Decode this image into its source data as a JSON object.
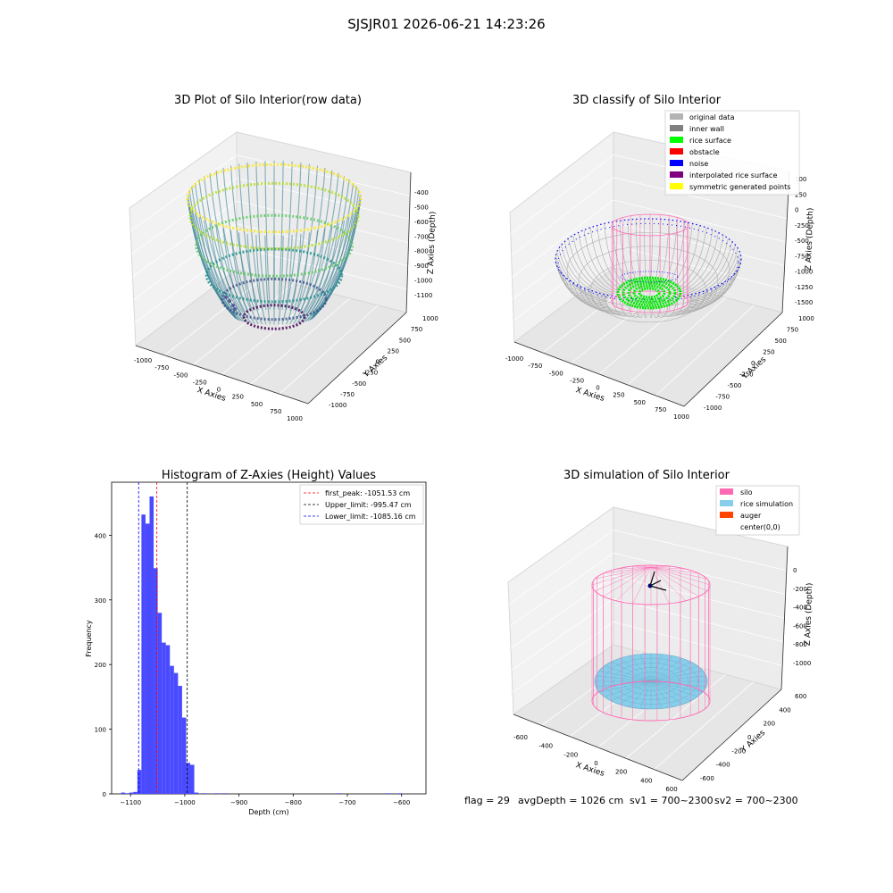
{
  "figure": {
    "suptitle": "SJSJR01 2026-06-21 14:23:26",
    "footer": {
      "flag": "flag = 29",
      "avg_depth": "avgDepth = 1026 cm",
      "sv1": "sv1 = 700~2300",
      "sv2": "sv2 = 700~2300"
    }
  },
  "chart_data": [
    {
      "type": "scatter3d",
      "title": "3D Plot of Silo Interior(row data)",
      "xlabel": "X Axies",
      "ylabel": "Y Axies",
      "zlabel": "Z Axies (Depth)",
      "x_ticks": [
        "-1000",
        "-750",
        "-500",
        "-250",
        "0",
        "250",
        "500",
        "750",
        "1000"
      ],
      "y_ticks": [
        "-1000",
        "-750",
        "-500",
        "-250",
        "0",
        "250",
        "500",
        "750",
        "1000"
      ],
      "z_ticks": [
        "-400",
        "-500",
        "-600",
        "-700",
        "-800",
        "-900",
        "-1000",
        "-1100"
      ],
      "xlim": [
        -1000,
        1000
      ],
      "ylim": [
        -1000,
        1000
      ],
      "zlim": [
        -1150,
        -350
      ],
      "colormap": "viridis"
    },
    {
      "type": "scatter3d",
      "title": "3D classify of Silo Interior",
      "xlabel": "X Axies",
      "ylabel": "Y Axies",
      "zlabel": "Z Axies (Depth)",
      "x_ticks": [
        "-1000",
        "-750",
        "-500",
        "-250",
        "0",
        "250",
        "500",
        "750",
        "1000"
      ],
      "y_ticks": [
        "-1000",
        "-750",
        "-500",
        "-250",
        "0",
        "250",
        "500",
        "750",
        "1000"
      ],
      "z_ticks": [
        "500",
        "250",
        "0",
        "-250",
        "-500",
        "-750",
        "-1000",
        "-1250",
        "-1500"
      ],
      "legend": [
        {
          "label": "original data",
          "color": "#b3b3b3"
        },
        {
          "label": "inner wall",
          "color": "#808080"
        },
        {
          "label": "rice surface",
          "color": "#00ff00"
        },
        {
          "label": "obstacle",
          "color": "#ff0000"
        },
        {
          "label": "noise",
          "color": "#0000ff"
        },
        {
          "label": "interpolated rice surface",
          "color": "#800080"
        },
        {
          "label": "symmetric generated points",
          "color": "#ffff00"
        }
      ],
      "legend_position": "upper right"
    },
    {
      "type": "bar",
      "title": "Histogram of Z-Axies (Height) Values",
      "xlabel": "Depth (cm)",
      "ylabel": "Frequency",
      "bar_color": "#4a4aff",
      "bin_width": 7.5,
      "bins": [
        {
          "x": -1117.5,
          "count": 2
        },
        {
          "x": -1110,
          "count": 1
        },
        {
          "x": -1102.5,
          "count": 2
        },
        {
          "x": -1095,
          "count": 3
        },
        {
          "x": -1087.5,
          "count": 37
        },
        {
          "x": -1080,
          "count": 432
        },
        {
          "x": -1072.5,
          "count": 418
        },
        {
          "x": -1065,
          "count": 460
        },
        {
          "x": -1057.5,
          "count": 349
        },
        {
          "x": -1050,
          "count": 280
        },
        {
          "x": -1042.5,
          "count": 234
        },
        {
          "x": -1035,
          "count": 230
        },
        {
          "x": -1027.5,
          "count": 198
        },
        {
          "x": -1020,
          "count": 187
        },
        {
          "x": -1012.5,
          "count": 167
        },
        {
          "x": -1005,
          "count": 118
        },
        {
          "x": -997.5,
          "count": 48
        },
        {
          "x": -990,
          "count": 45
        },
        {
          "x": -982.5,
          "count": 2
        },
        {
          "x": -967.5,
          "count": 1
        },
        {
          "x": -945,
          "count": 1
        },
        {
          "x": -930,
          "count": 1
        },
        {
          "x": -720,
          "count": 1
        },
        {
          "x": -630,
          "count": 1
        },
        {
          "x": -607.5,
          "count": 1
        }
      ],
      "xlim": [
        -1135,
        -555
      ],
      "ylim": [
        0,
        482
      ],
      "x_ticks": [
        -1100,
        -1000,
        -900,
        -800,
        -700,
        -600
      ],
      "y_ticks": [
        0,
        100,
        200,
        300,
        400
      ],
      "vlines": [
        {
          "x": -1051.53,
          "color": "#ff0000",
          "label": "first_peak: -1051.53 cm"
        },
        {
          "x": -995.47,
          "color": "#000000",
          "label": "Upper_limit: -995.47 cm"
        },
        {
          "x": -1085.16,
          "color": "#0000ff",
          "label": "Lower_limit: -1085.16 cm"
        }
      ],
      "legend_position": "upper right"
    },
    {
      "type": "scatter3d",
      "title": "3D simulation of Silo Interior",
      "xlabel": "X Axies",
      "ylabel": "Y Axies",
      "zlabel": "Z Axies (Depth)",
      "x_ticks": [
        "-600",
        "-400",
        "-200",
        "0",
        "200",
        "400",
        "600"
      ],
      "y_ticks": [
        "-600",
        "-400",
        "-200",
        "0",
        "200",
        "400",
        "600"
      ],
      "z_ticks": [
        "0",
        "-200",
        "-400",
        "-600",
        "-800",
        "-1000"
      ],
      "legend": [
        {
          "label": "silo",
          "color": "#ff69b4"
        },
        {
          "label": "rice simulation",
          "color": "#87ceeb"
        },
        {
          "label": "auger",
          "color": "#ff4500"
        },
        {
          "label": "center(0,0)",
          "color": ""
        }
      ],
      "legend_position": "upper right"
    }
  ]
}
